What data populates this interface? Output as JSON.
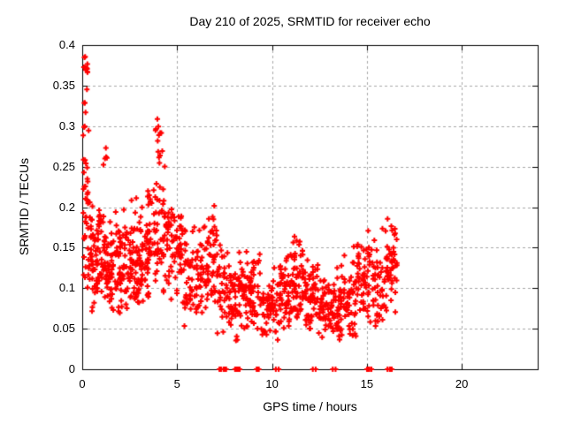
{
  "chart_data": {
    "type": "scatter",
    "title": "Day 210 of 2025, SRMTID for receiver echo",
    "xlabel": "GPS time / hours",
    "ylabel": "SRMTID / TECUs",
    "xlim": [
      0,
      24
    ],
    "ylim": [
      0,
      0.4
    ],
    "xticks": [
      0,
      5,
      10,
      15,
      20
    ],
    "xtick_labels": [
      "0",
      "5",
      "10",
      "15",
      "20"
    ],
    "yticks": [
      0,
      0.05,
      0.1,
      0.15,
      0.2,
      0.25,
      0.3,
      0.35,
      0.4
    ],
    "ytick_labels": [
      "0",
      "0.05",
      "0.1",
      "0.15",
      "0.2",
      "0.25",
      "0.3",
      "0.35",
      "0.4"
    ],
    "grid": true,
    "grid_style": "dashed",
    "grid_color": "#a8a8a8",
    "legend": false,
    "background_color": "#ffffff",
    "border_color": "#000000",
    "marker": {
      "shape": "plus",
      "color": "#ff0000",
      "size": 7,
      "stroke": 2
    },
    "data_x_start_hours": 0.05,
    "data_x_end_hours": 16.6,
    "approximation_note": "Dense ~1400-point cloud; reproduced statistically from the cluster envelopes below (x0, x1, n, y_mean, y_sd, y_min, y_max) read off the plot.",
    "clusters": [
      [
        0.05,
        0.35,
        26,
        0.225,
        0.04,
        0.15,
        0.32
      ],
      [
        0.08,
        0.3,
        12,
        0.37,
        0.012,
        0.345,
        0.39
      ],
      [
        0.1,
        0.3,
        5,
        0.31,
        0.015,
        0.29,
        0.335
      ],
      [
        0.05,
        0.4,
        8,
        0.13,
        0.025,
        0.1,
        0.17
      ],
      [
        0.3,
        1.2,
        90,
        0.14,
        0.035,
        0.065,
        0.23
      ],
      [
        1.1,
        1.45,
        5,
        0.27,
        0.02,
        0.24,
        0.3
      ],
      [
        1.2,
        2.6,
        130,
        0.125,
        0.03,
        0.06,
        0.215
      ],
      [
        2.6,
        3.5,
        90,
        0.135,
        0.03,
        0.07,
        0.22
      ],
      [
        3.45,
        4.4,
        70,
        0.17,
        0.045,
        0.09,
        0.26
      ],
      [
        3.8,
        4.25,
        12,
        0.285,
        0.015,
        0.26,
        0.31
      ],
      [
        4.4,
        5.3,
        70,
        0.145,
        0.028,
        0.08,
        0.21
      ],
      [
        5.3,
        6.4,
        80,
        0.115,
        0.03,
        0.05,
        0.185
      ],
      [
        6.4,
        7.1,
        55,
        0.125,
        0.035,
        0.05,
        0.205
      ],
      [
        7.1,
        7.9,
        55,
        0.095,
        0.028,
        0.04,
        0.16
      ],
      [
        7.9,
        8.7,
        60,
        0.09,
        0.027,
        0.035,
        0.15
      ],
      [
        8.7,
        9.4,
        55,
        0.1,
        0.03,
        0.05,
        0.158
      ],
      [
        9.4,
        10.35,
        60,
        0.075,
        0.022,
        0.035,
        0.15
      ],
      [
        10.35,
        11.1,
        65,
        0.1,
        0.028,
        0.05,
        0.16
      ],
      [
        11.1,
        11.65,
        50,
        0.115,
        0.03,
        0.06,
        0.17
      ],
      [
        11.65,
        12.45,
        60,
        0.09,
        0.025,
        0.045,
        0.145
      ],
      [
        12.45,
        13.6,
        85,
        0.075,
        0.02,
        0.035,
        0.125
      ],
      [
        13.6,
        14.45,
        65,
        0.085,
        0.027,
        0.04,
        0.155
      ],
      [
        14.45,
        15.25,
        55,
        0.115,
        0.033,
        0.055,
        0.175
      ],
      [
        15.25,
        15.95,
        45,
        0.1,
        0.03,
        0.05,
        0.19
      ],
      [
        15.95,
        16.6,
        50,
        0.125,
        0.033,
        0.06,
        0.188
      ]
    ],
    "zero_value_marks": {
      "note": "Solid red blocks / thin ticks sitting on y=0 (center_hour, half_width_hours, point_count)",
      "blocks": [
        [
          7.4,
          0.18,
          9
        ],
        [
          8.2,
          0.15,
          9
        ],
        [
          9.2,
          0.12,
          8
        ],
        [
          15.15,
          0.15,
          9
        ],
        [
          16.2,
          0.12,
          7
        ]
      ],
      "thin_pairs": [
        [
          10.2,
          0.0,
          1
        ],
        [
          10.35,
          0.0,
          1
        ],
        [
          12.15,
          0.0,
          1
        ],
        [
          12.3,
          0.0,
          1
        ],
        [
          13.2,
          0.0,
          1
        ],
        [
          13.35,
          0.0,
          1
        ]
      ]
    },
    "seed": 210
  }
}
